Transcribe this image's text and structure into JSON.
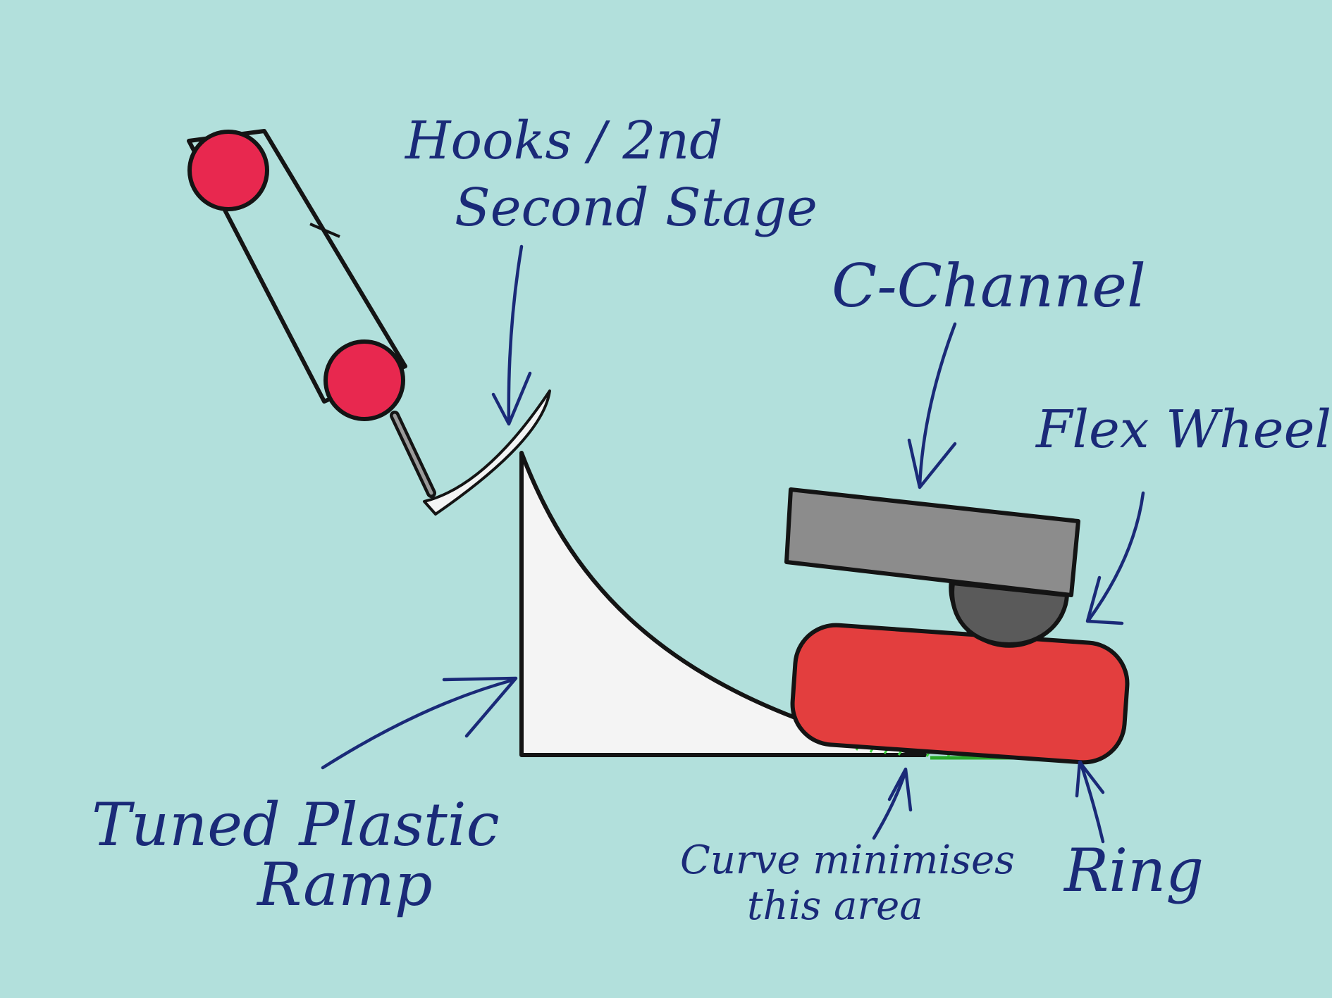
{
  "colors": {
    "background": "#b2e0dc",
    "ink": "#1a2a78",
    "outline": "#141414",
    "roller_red": "#e8284f",
    "ramp_fill": "#f4f4f4",
    "c_channel_fill": "#8c8c8c",
    "flex_wheel_fill": "#5a5a5a",
    "ring_fill": "#e33e3e",
    "hatch_green": "#3fd33f"
  },
  "labels": {
    "hooks": "Hooks / 2nd",
    "second_stage": "Second Stage",
    "c_channel": "C-Channel",
    "flex_wheel": "Flex Wheel",
    "ramp_line1": "Tuned Plastic",
    "ramp_line2": "Ramp",
    "curve_line1": "Curve minimises",
    "curve_line2": "this area",
    "ring": "Ring"
  }
}
